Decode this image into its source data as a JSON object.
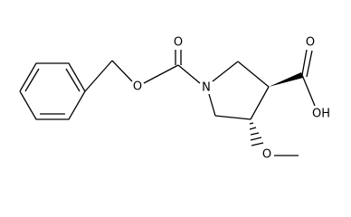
{
  "atoms": [
    {
      "label": "O"
    },
    {
      "label": "O"
    },
    {
      "label": "N"
    },
    {
      "label": "O"
    },
    {
      "label": "OH"
    },
    {
      "label": "O"
    }
  ]
}
